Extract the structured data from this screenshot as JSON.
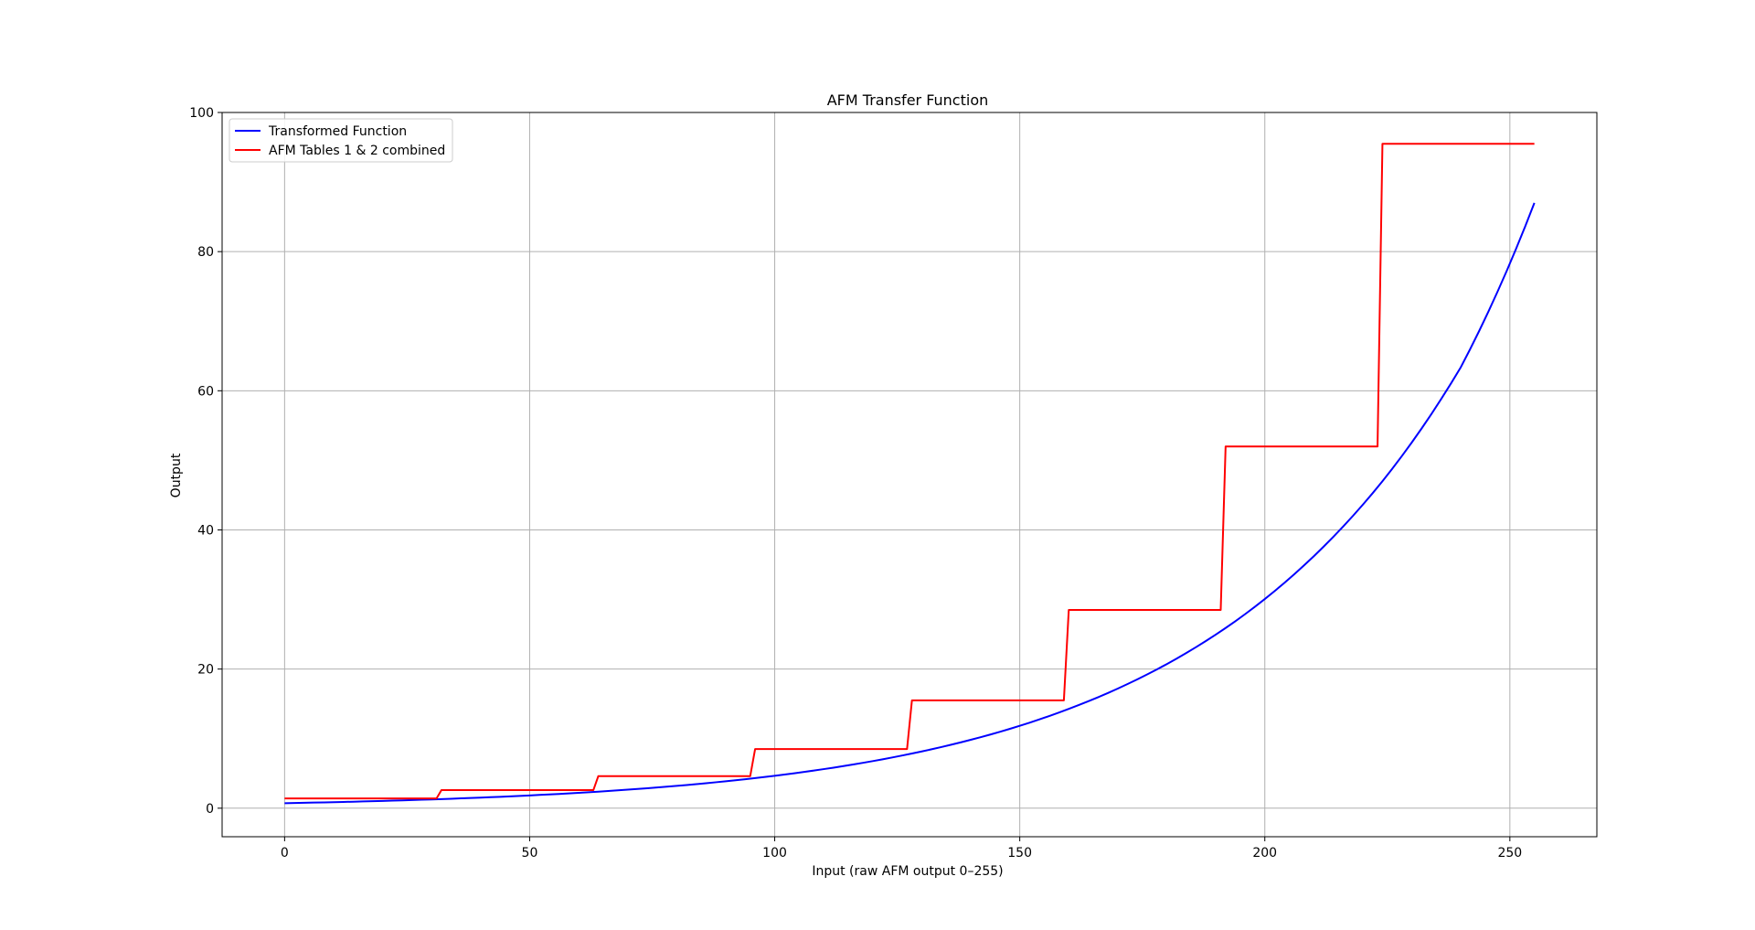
{
  "chart_data": {
    "type": "line",
    "title": "AFM Transfer Function",
    "xlabel": "Input (raw AFM output 0–255)",
    "ylabel": "Output",
    "xlim": [
      -12.75,
      267.75
    ],
    "ylim": [
      -4.1,
      100
    ],
    "xticks": [
      0,
      50,
      100,
      150,
      200,
      250
    ],
    "yticks": [
      0,
      20,
      40,
      60,
      80,
      100
    ],
    "grid": true,
    "legend_position": "upper-left",
    "series": [
      {
        "name": "Transformed Function",
        "color": "#0000ff",
        "x": [
          0,
          16,
          32,
          48,
          64,
          80,
          96,
          112,
          128,
          144,
          160,
          176,
          192,
          208,
          224,
          240,
          255
        ],
        "y": [
          0.72,
          0.97,
          1.31,
          1.77,
          2.38,
          3.21,
          4.33,
          5.83,
          7.86,
          10.59,
          14.27,
          19.23,
          25.9,
          34.9,
          47.0,
          63.4,
          87.0
        ]
      },
      {
        "name": "AFM Tables 1 & 2 combined",
        "color": "#ff0000",
        "x": [
          0,
          31,
          32,
          63,
          64,
          95,
          96,
          127,
          128,
          159,
          160,
          191,
          192,
          223,
          224,
          255
        ],
        "y": [
          1.4,
          1.4,
          2.6,
          2.6,
          4.6,
          4.6,
          8.5,
          8.5,
          15.5,
          15.5,
          28.5,
          28.5,
          52.0,
          52.0,
          95.5,
          95.5
        ]
      }
    ]
  }
}
